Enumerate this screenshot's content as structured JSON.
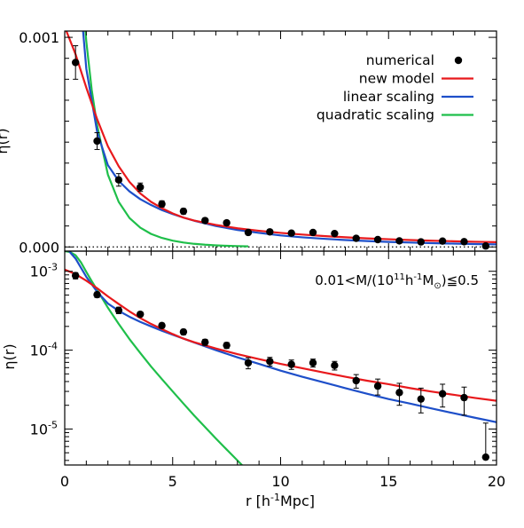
{
  "chart_data": {
    "type": "line",
    "xlabel_html": "r [h<sup>-1</sup>Mpc]",
    "x_ticks": [
      "0",
      "5",
      "10",
      "15",
      "20"
    ],
    "xlim": [
      0,
      20
    ],
    "legend_placement": "top-right",
    "legend": [
      {
        "name": "numerical",
        "color": "#000000",
        "marker": "dot"
      },
      {
        "name": "new model",
        "color": "#e8191c",
        "marker": "line"
      },
      {
        "name": "linear scaling",
        "color": "#1e4fc9",
        "marker": "line"
      },
      {
        "name": "quadratic scaling",
        "color": "#1fbf4a",
        "marker": "line"
      }
    ],
    "annotation": "0.01<M/(10^11 h^-1 M_sun)≦0.5",
    "panels": [
      {
        "name": "top",
        "ylabel": "η(r)",
        "yscale": "linear",
        "ylim": [
          -2e-05,
          0.00103
        ],
        "y_ticks": [
          {
            "value": 0.0,
            "label": "0.000"
          },
          {
            "value": 0.001,
            "label": "0.001"
          }
        ],
        "zero_line": true
      },
      {
        "name": "bottom",
        "ylabel": "η(r)",
        "yscale": "log",
        "ylim": [
          3.5e-06,
          0.0018
        ],
        "y_ticks": [
          {
            "value": 0.001,
            "label": "10^-3"
          },
          {
            "value": 0.0001,
            "label": "10^-4"
          },
          {
            "value": 1e-05,
            "label": "10^-5"
          }
        ]
      }
    ],
    "numerical": {
      "x": [
        0.5,
        1.5,
        2.5,
        3.5,
        4.5,
        5.5,
        6.5,
        7.5,
        8.5,
        9.5,
        10.5,
        11.5,
        12.5,
        13.5,
        14.5,
        15.5,
        16.5,
        17.5,
        18.5,
        19.5
      ],
      "y": [
        0.00088,
        0.000505,
        0.00032,
        0.000285,
        0.000205,
        0.00017,
        0.000126,
        0.000115,
        6.9e-05,
        7.2e-05,
        6.6e-05,
        6.9e-05,
        6.4e-05,
        4.1e-05,
        3.5e-05,
        2.9e-05,
        2.4e-05,
        2.8e-05,
        2.5e-05,
        4.4e-06
      ],
      "yerr_low": [
        8e-05,
        4e-05,
        3e-05,
        2e-05,
        1.5e-05,
        1.3e-05,
        1.1e-05,
        1e-05,
        1.1e-05,
        9e-06,
        9e-06,
        8e-06,
        8e-06,
        8e-06,
        8e-06,
        9e-06,
        8e-06,
        9e-06,
        1e-05,
        0.0
      ],
      "yerr_high": [
        8e-05,
        4e-05,
        3e-05,
        2e-05,
        1.5e-05,
        1.3e-05,
        1.1e-05,
        1e-05,
        1.1e-05,
        9e-06,
        9e-06,
        8e-06,
        8e-06,
        8e-06,
        8e-06,
        9e-06,
        9e-06,
        9e-06,
        9e-06,
        7.5e-06
      ]
    },
    "curves": [
      {
        "name": "new model",
        "color": "#e8191c",
        "x": [
          0,
          0.5,
          1,
          1.5,
          2,
          2.5,
          3,
          3.5,
          4,
          4.5,
          5,
          5.5,
          6,
          7,
          8,
          9,
          10,
          11,
          12,
          13,
          14,
          15,
          16,
          17,
          18,
          19,
          20
        ],
        "y": [
          0.00105,
          0.00092,
          0.00076,
          0.00061,
          0.00048,
          0.000385,
          0.00031,
          0.000255,
          0.000215,
          0.000185,
          0.00016,
          0.00014,
          0.000126,
          0.000105,
          8.9e-05,
          7.7e-05,
          6.7e-05,
          5.9e-05,
          5.2e-05,
          4.6e-05,
          4.1e-05,
          3.7e-05,
          3.3e-05,
          2.98e-05,
          2.72e-05,
          2.48e-05,
          2.28e-05
        ]
      },
      {
        "name": "linear scaling",
        "color": "#1e4fc9",
        "x": [
          0.2,
          0.5,
          1,
          1.5,
          2,
          2.5,
          3,
          3.5,
          4,
          4.5,
          5,
          5.5,
          6,
          7,
          8,
          9,
          10,
          11,
          12,
          13,
          14,
          15,
          16,
          17,
          18,
          19,
          20
        ],
        "y": [
          0.0018,
          0.00145,
          0.00085,
          0.00055,
          0.00039,
          0.000315,
          0.000265,
          0.000228,
          0.0002,
          0.000176,
          0.000157,
          0.00014,
          0.000125,
          0.0001,
          8.1e-05,
          6.7e-05,
          5.5e-05,
          4.6e-05,
          3.9e-05,
          3.3e-05,
          2.8e-05,
          2.4e-05,
          2.1e-05,
          1.82e-05,
          1.59e-05,
          1.39e-05,
          1.22e-05
        ]
      },
      {
        "name": "quadratic scaling",
        "color": "#1fbf4a",
        "x": [
          0,
          0.25,
          0.5,
          0.75,
          1,
          1.25,
          1.5,
          2,
          2.5,
          3,
          3.5,
          4,
          4.5,
          5,
          5.5,
          6,
          6.5,
          7,
          7.5,
          8,
          8.5
        ],
        "y": [
          0.0018,
          0.00175,
          0.0016,
          0.0013,
          0.00098,
          0.00075,
          0.00058,
          0.000345,
          0.000215,
          0.000138,
          9.2e-05,
          6.2e-05,
          4.3e-05,
          3e-05,
          2.1e-05,
          1.48e-05,
          1.06e-05,
          7.6e-06,
          5.5e-06,
          4e-06,
          2.9e-06
        ]
      }
    ]
  }
}
